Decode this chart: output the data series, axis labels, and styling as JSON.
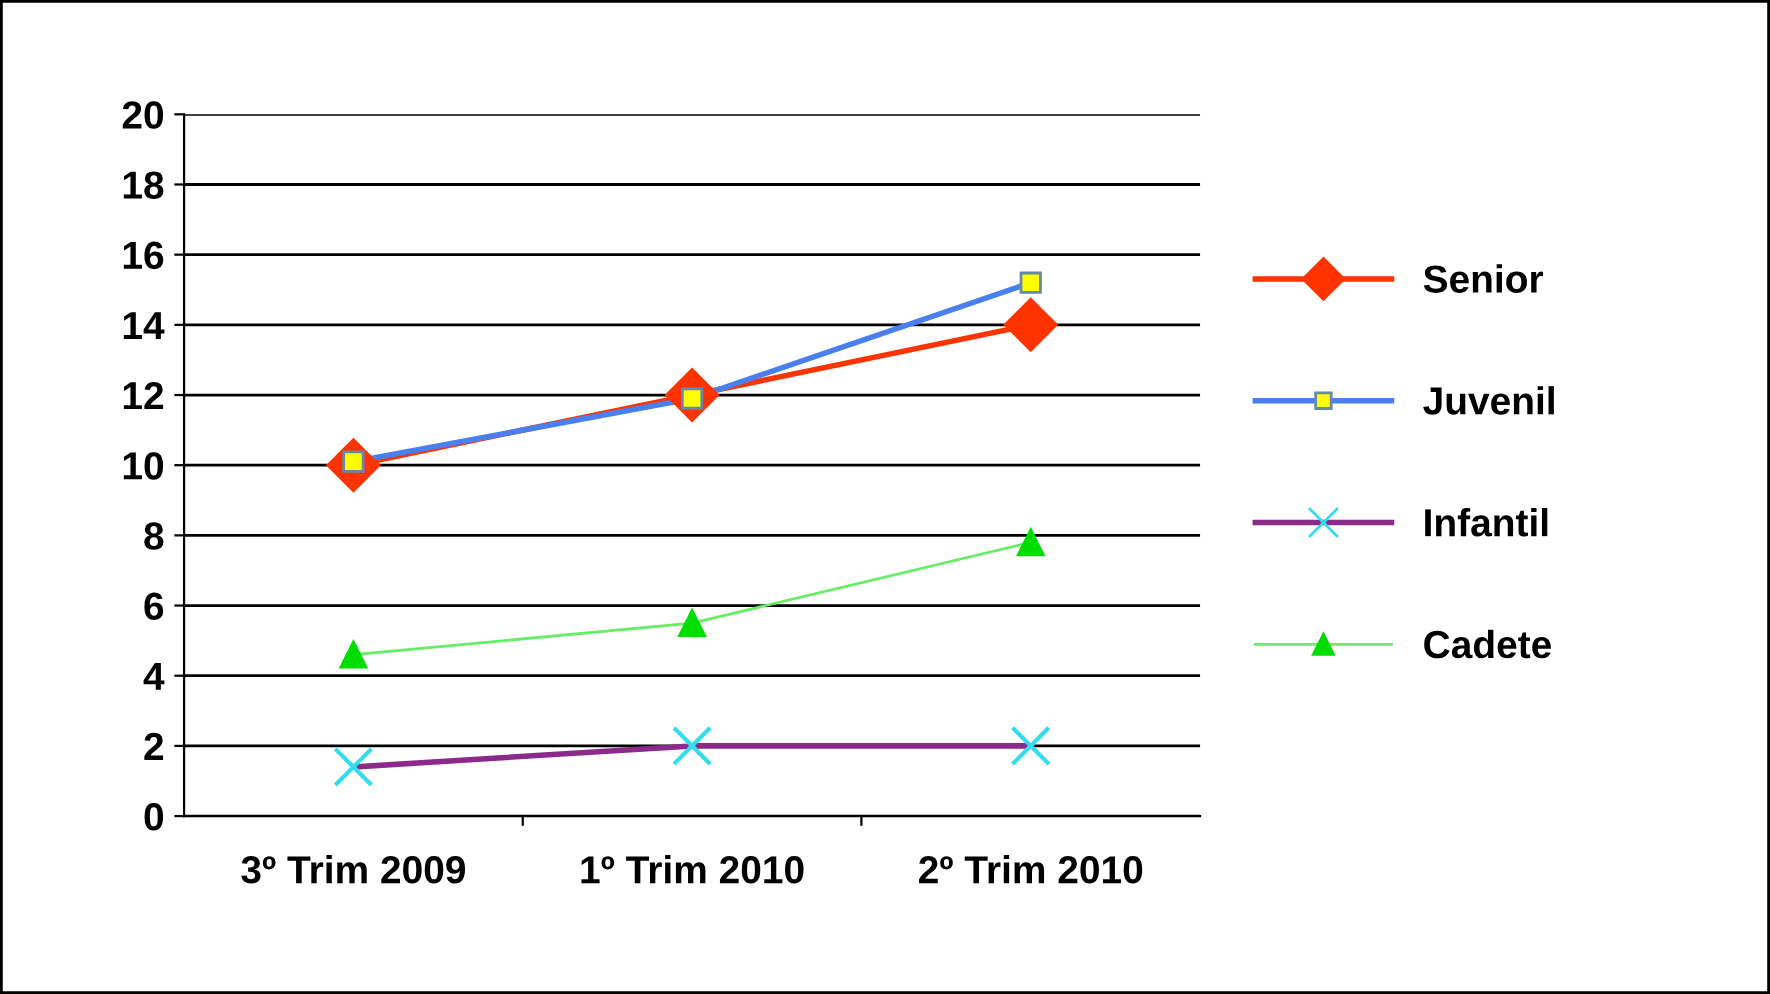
{
  "chart_data": {
    "type": "line",
    "categories": [
      "3º Trim 2009",
      "1º Trim 2010",
      "2º Trim 2010"
    ],
    "series": [
      {
        "name": "Senior",
        "color": "#ff3300",
        "marker": "diamond",
        "values": [
          10,
          12,
          14
        ]
      },
      {
        "name": "Juvenil",
        "color": "#4a7ff0",
        "colors": [
          "#ffff00",
          "#ffff00",
          "#ffff00"
        ],
        "marker": "square",
        "values": [
          10.1,
          11.9,
          15.2
        ]
      },
      {
        "name": "Infantil",
        "color": "#8b2a8b",
        "colors": [
          "#33ddee",
          "#33ddee",
          "#33ddee"
        ],
        "marker": "cross",
        "values": [
          1.4,
          2.0,
          2.0
        ]
      },
      {
        "name": "Cadete",
        "color": "#66ee66",
        "colors": [
          "#00dd00",
          "#00dd00",
          "#00dd00"
        ],
        "marker": "triangle",
        "values": [
          4.6,
          5.5,
          7.8
        ]
      }
    ],
    "ylim": [
      0,
      20
    ],
    "yticks": [
      0,
      2,
      4,
      6,
      8,
      10,
      12,
      14,
      16,
      18,
      20
    ],
    "grid": "y",
    "legend": "right"
  }
}
